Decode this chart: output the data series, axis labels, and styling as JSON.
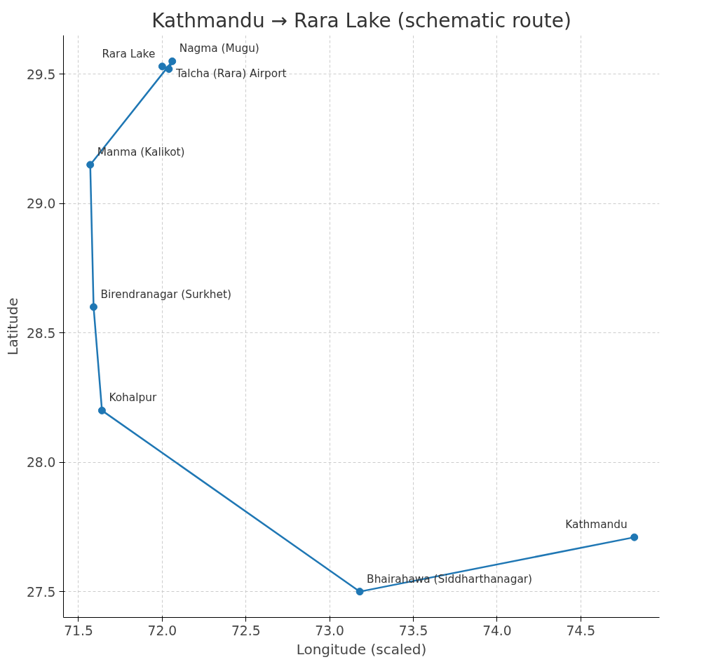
{
  "chart_data": {
    "type": "line",
    "title": "Kathmandu → Rara Lake (schematic route)",
    "xlabel": "Longitude (scaled)",
    "ylabel": "Latitude",
    "x": [
      74.82,
      73.18,
      71.64,
      71.59,
      71.57,
      72.06,
      72.04,
      72.0
    ],
    "series": [
      {
        "color": "#1f77b4",
        "values": [
          27.71,
          27.5,
          28.2,
          28.6,
          29.15,
          29.55,
          29.52,
          29.53
        ]
      }
    ],
    "annotations": [
      {
        "text": "Kathmandu",
        "x": 74.82,
        "y": 27.71
      },
      {
        "text": "Bhairahawa (Siddharthanagar)",
        "x": 73.18,
        "y": 27.5
      },
      {
        "text": "Kohalpur",
        "x": 71.64,
        "y": 28.2
      },
      {
        "text": "Birendranagar (Surkhet)",
        "x": 71.59,
        "y": 28.6
      },
      {
        "text": "Manma (Kalikot)",
        "x": 71.57,
        "y": 29.15
      },
      {
        "text": "Nagma (Mugu)",
        "x": 72.06,
        "y": 29.55
      },
      {
        "text": "Talcha (Rara) Airport",
        "x": 72.04,
        "y": 29.52
      },
      {
        "text": "Rara Lake",
        "x": 72.0,
        "y": 29.53
      }
    ],
    "xlim": [
      71.41,
      74.97
    ],
    "ylim": [
      27.4,
      29.65
    ],
    "xticks": [
      71.5,
      {
        "value": 72.0,
        "label": "72.0"
      },
      72.5,
      {
        "value": 73.0,
        "label": "73.0"
      },
      73.5,
      {
        "value": 74.0,
        "label": "74.0"
      },
      74.5
    ],
    "yticks": [
      27.5,
      {
        "value": 28.0,
        "label": "28.0"
      },
      28.5,
      {
        "value": 29.0,
        "label": "29.0"
      },
      29.5
    ],
    "grid": true,
    "marker": "circle",
    "line_style": "solid"
  }
}
